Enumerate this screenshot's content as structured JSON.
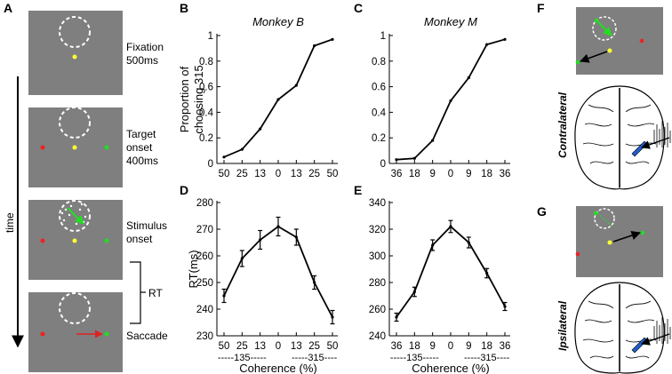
{
  "panels": {
    "A": "A",
    "B": "B",
    "C": "C",
    "D": "D",
    "E": "E",
    "F": "F",
    "G": "G"
  },
  "timeline": {
    "time_label": "time",
    "rt_label": "RT",
    "events": [
      {
        "label": "Fixation",
        "sub": "500ms"
      },
      {
        "label": "Target",
        "sub": "onset",
        "sub2": "400ms"
      },
      {
        "label": "Stimulus",
        "sub": "onset"
      },
      {
        "label": "Saccade"
      }
    ]
  },
  "brains": {
    "contralateral_label": "Contralateral",
    "ipsilateral_label": "Ipsilateral"
  },
  "colors": {
    "screen_gray": "#7f7f7f",
    "fixation_yellow": "#ffff33",
    "target_red": "#ee2222",
    "target_green": "#22dd22",
    "aperture_white": "#ffffff",
    "saccade_red": "#dd2222",
    "electrode_blue": "#1f5fcc"
  },
  "chart_data": [
    {
      "id": "B",
      "type": "line",
      "title": "Monkey B",
      "ylabel_line1": "Proportion of",
      "ylabel_line2": "choosing 315",
      "xlabel": "",
      "categories": [
        "50",
        "25",
        "13",
        "0",
        "13",
        "25",
        "50"
      ],
      "values": [
        0.05,
        0.11,
        0.27,
        0.5,
        0.61,
        0.92,
        0.97
      ],
      "ylim": [
        0,
        1
      ],
      "yticks": [
        0,
        0.2,
        0.4,
        0.6,
        0.8,
        1
      ],
      "ytick_labels": [
        "0",
        "0.2",
        "0.4",
        "0.6",
        "0.8",
        "1"
      ]
    },
    {
      "id": "C",
      "type": "line",
      "title": "Monkey M",
      "xlabel": "",
      "categories": [
        "36",
        "18",
        "9",
        "0",
        "9",
        "18",
        "36"
      ],
      "values": [
        0.03,
        0.04,
        0.18,
        0.49,
        0.67,
        0.93,
        0.97
      ],
      "ylim": [
        0,
        1
      ],
      "yticks": [
        0,
        0.2,
        0.4,
        0.6,
        0.8,
        1
      ],
      "ytick_labels": [
        "0",
        "0.2",
        "0.4",
        "0.6",
        "0.8",
        "1"
      ]
    },
    {
      "id": "D",
      "type": "line",
      "ylabel": "RT(ms)",
      "xlabel": "Coherence (%)",
      "group_labels": [
        "-----135-----",
        "-----315----"
      ],
      "categories": [
        "50",
        "25",
        "13",
        "0",
        "13",
        "25",
        "50"
      ],
      "values": [
        245,
        259,
        266,
        271,
        267,
        250,
        237
      ],
      "errors": [
        2.5,
        3,
        3.5,
        3.5,
        3,
        2.5,
        2.5
      ],
      "ylim": [
        230,
        280
      ],
      "yticks": [
        230,
        240,
        250,
        260,
        270,
        280
      ],
      "ytick_labels": [
        "230",
        "240",
        "250",
        "260",
        "270",
        "280"
      ]
    },
    {
      "id": "E",
      "type": "line",
      "xlabel": "Coherence (%)",
      "group_labels": [
        "-----135-----",
        "-----315----"
      ],
      "categories": [
        "36",
        "18",
        "9",
        "0",
        "9",
        "18",
        "36"
      ],
      "values": [
        254,
        273,
        308,
        322,
        310,
        287,
        262
      ],
      "errors": [
        3,
        3.5,
        4,
        4.5,
        4,
        3.5,
        3
      ],
      "ylim": [
        240,
        340
      ],
      "yticks": [
        240,
        260,
        280,
        300,
        320,
        340
      ],
      "ytick_labels": [
        "240",
        "260",
        "280",
        "300",
        "320",
        "340"
      ]
    }
  ]
}
